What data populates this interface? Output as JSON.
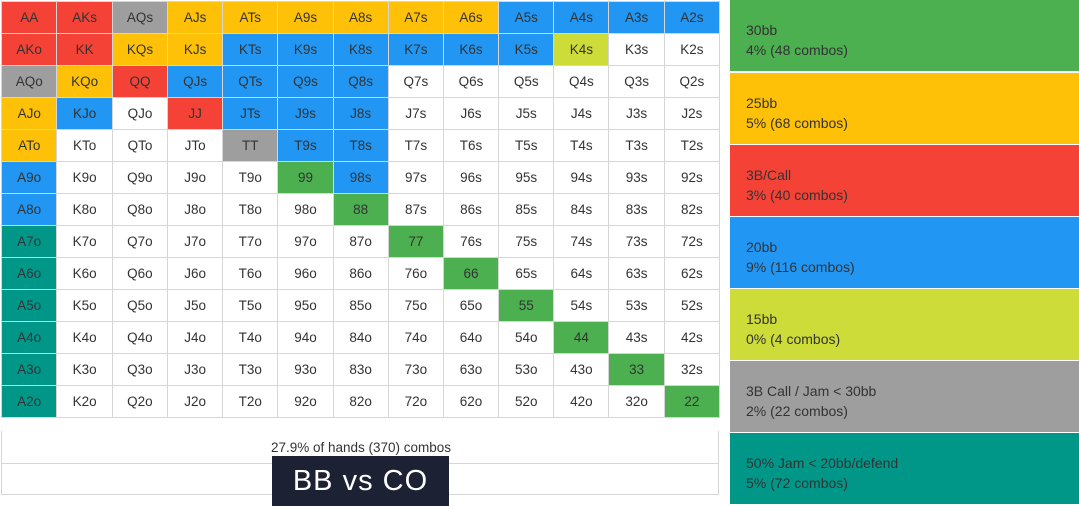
{
  "colors": {
    "green": "#4caf50",
    "orange": "#ffc107",
    "red": "#f44336",
    "blue": "#2196f3",
    "lime": "#cddc39",
    "grey": "#9e9e9e",
    "teal": "#009688",
    "white": "#ffffff"
  },
  "grid": {
    "rows": [
      [
        "AA",
        "AKs",
        "AQs",
        "AJs",
        "ATs",
        "A9s",
        "A8s",
        "A7s",
        "A6s",
        "A5s",
        "A4s",
        "A3s",
        "A2s"
      ],
      [
        "AKo",
        "KK",
        "KQs",
        "KJs",
        "KTs",
        "K9s",
        "K8s",
        "K7s",
        "K6s",
        "K5s",
        "K4s",
        "K3s",
        "K2s"
      ],
      [
        "AQo",
        "KQo",
        "QQ",
        "QJs",
        "QTs",
        "Q9s",
        "Q8s",
        "Q7s",
        "Q6s",
        "Q5s",
        "Q4s",
        "Q3s",
        "Q2s"
      ],
      [
        "AJo",
        "KJo",
        "QJo",
        "JJ",
        "JTs",
        "J9s",
        "J8s",
        "J7s",
        "J6s",
        "J5s",
        "J4s",
        "J3s",
        "J2s"
      ],
      [
        "ATo",
        "KTo",
        "QTo",
        "JTo",
        "TT",
        "T9s",
        "T8s",
        "T7s",
        "T6s",
        "T5s",
        "T4s",
        "T3s",
        "T2s"
      ],
      [
        "A9o",
        "K9o",
        "Q9o",
        "J9o",
        "T9o",
        "99",
        "98s",
        "97s",
        "96s",
        "95s",
        "94s",
        "93s",
        "92s"
      ],
      [
        "A8o",
        "K8o",
        "Q8o",
        "J8o",
        "T8o",
        "98o",
        "88",
        "87s",
        "86s",
        "85s",
        "84s",
        "83s",
        "82s"
      ],
      [
        "A7o",
        "K7o",
        "Q7o",
        "J7o",
        "T7o",
        "97o",
        "87o",
        "77",
        "76s",
        "75s",
        "74s",
        "73s",
        "72s"
      ],
      [
        "A6o",
        "K6o",
        "Q6o",
        "J6o",
        "T6o",
        "96o",
        "86o",
        "76o",
        "66",
        "65s",
        "64s",
        "63s",
        "62s"
      ],
      [
        "A5o",
        "K5o",
        "Q5o",
        "J5o",
        "T5o",
        "95o",
        "85o",
        "75o",
        "65o",
        "55",
        "54s",
        "53s",
        "52s"
      ],
      [
        "A4o",
        "K4o",
        "Q4o",
        "J4o",
        "T4o",
        "94o",
        "84o",
        "74o",
        "64o",
        "54o",
        "44",
        "43s",
        "42s"
      ],
      [
        "A3o",
        "K3o",
        "Q3o",
        "J3o",
        "T3o",
        "93o",
        "83o",
        "73o",
        "63o",
        "53o",
        "43o",
        "33",
        "32s"
      ],
      [
        "A2o",
        "K2o",
        "Q2o",
        "J2o",
        "T2o",
        "92o",
        "82o",
        "72o",
        "62o",
        "52o",
        "42o",
        "32o",
        "22"
      ]
    ],
    "cell_colors": [
      [
        "red",
        "red",
        "grey",
        "orange",
        "orange",
        "orange",
        "orange",
        "orange",
        "orange",
        "blue",
        "blue",
        "blue",
        "blue"
      ],
      [
        "red",
        "red",
        "orange",
        "orange",
        "blue",
        "blue",
        "blue",
        "blue",
        "blue",
        "blue",
        "lime",
        "white",
        "white"
      ],
      [
        "grey",
        "orange",
        "red",
        "blue",
        "blue",
        "blue",
        "blue",
        "white",
        "white",
        "white",
        "white",
        "white",
        "white"
      ],
      [
        "orange",
        "blue",
        "white",
        "red",
        "blue",
        "blue",
        "blue",
        "white",
        "white",
        "white",
        "white",
        "white",
        "white"
      ],
      [
        "orange",
        "white",
        "white",
        "white",
        "grey",
        "blue",
        "blue",
        "white",
        "white",
        "white",
        "white",
        "white",
        "white"
      ],
      [
        "blue",
        "white",
        "white",
        "white",
        "white",
        "green",
        "blue",
        "white",
        "white",
        "white",
        "white",
        "white",
        "white"
      ],
      [
        "blue",
        "white",
        "white",
        "white",
        "white",
        "white",
        "green",
        "white",
        "white",
        "white",
        "white",
        "white",
        "white"
      ],
      [
        "teal",
        "white",
        "white",
        "white",
        "white",
        "white",
        "white",
        "green",
        "white",
        "white",
        "white",
        "white",
        "white"
      ],
      [
        "teal",
        "white",
        "white",
        "white",
        "white",
        "white",
        "white",
        "white",
        "green",
        "white",
        "white",
        "white",
        "white"
      ],
      [
        "teal",
        "white",
        "white",
        "white",
        "white",
        "white",
        "white",
        "white",
        "white",
        "green",
        "white",
        "white",
        "white"
      ],
      [
        "teal",
        "white",
        "white",
        "white",
        "white",
        "white",
        "white",
        "white",
        "white",
        "white",
        "green",
        "white",
        "white"
      ],
      [
        "teal",
        "white",
        "white",
        "white",
        "white",
        "white",
        "white",
        "white",
        "white",
        "white",
        "white",
        "green",
        "white"
      ],
      [
        "teal",
        "white",
        "white",
        "white",
        "white",
        "white",
        "white",
        "white",
        "white",
        "white",
        "white",
        "white",
        "green"
      ]
    ],
    "summary": "27.9% of hands (370) combos"
  },
  "title": "BB vs CO",
  "legend": [
    {
      "color": "green",
      "label": "30bb",
      "stat": "4% (48 combos)"
    },
    {
      "color": "orange",
      "label": "25bb",
      "stat": "5% (68 combos)"
    },
    {
      "color": "red",
      "label": "3B/Call",
      "stat": "3% (40 combos)"
    },
    {
      "color": "blue",
      "label": "20bb",
      "stat": "9% (116 combos)"
    },
    {
      "color": "lime",
      "label": "15bb",
      "stat": "0% (4 combos)"
    },
    {
      "color": "grey",
      "label": "3B Call / Jam < 30bb",
      "stat": "2% (22 combos)"
    },
    {
      "color": "teal",
      "label": "50% Jam < 20bb/defend",
      "stat": "5% (72 combos)"
    }
  ]
}
